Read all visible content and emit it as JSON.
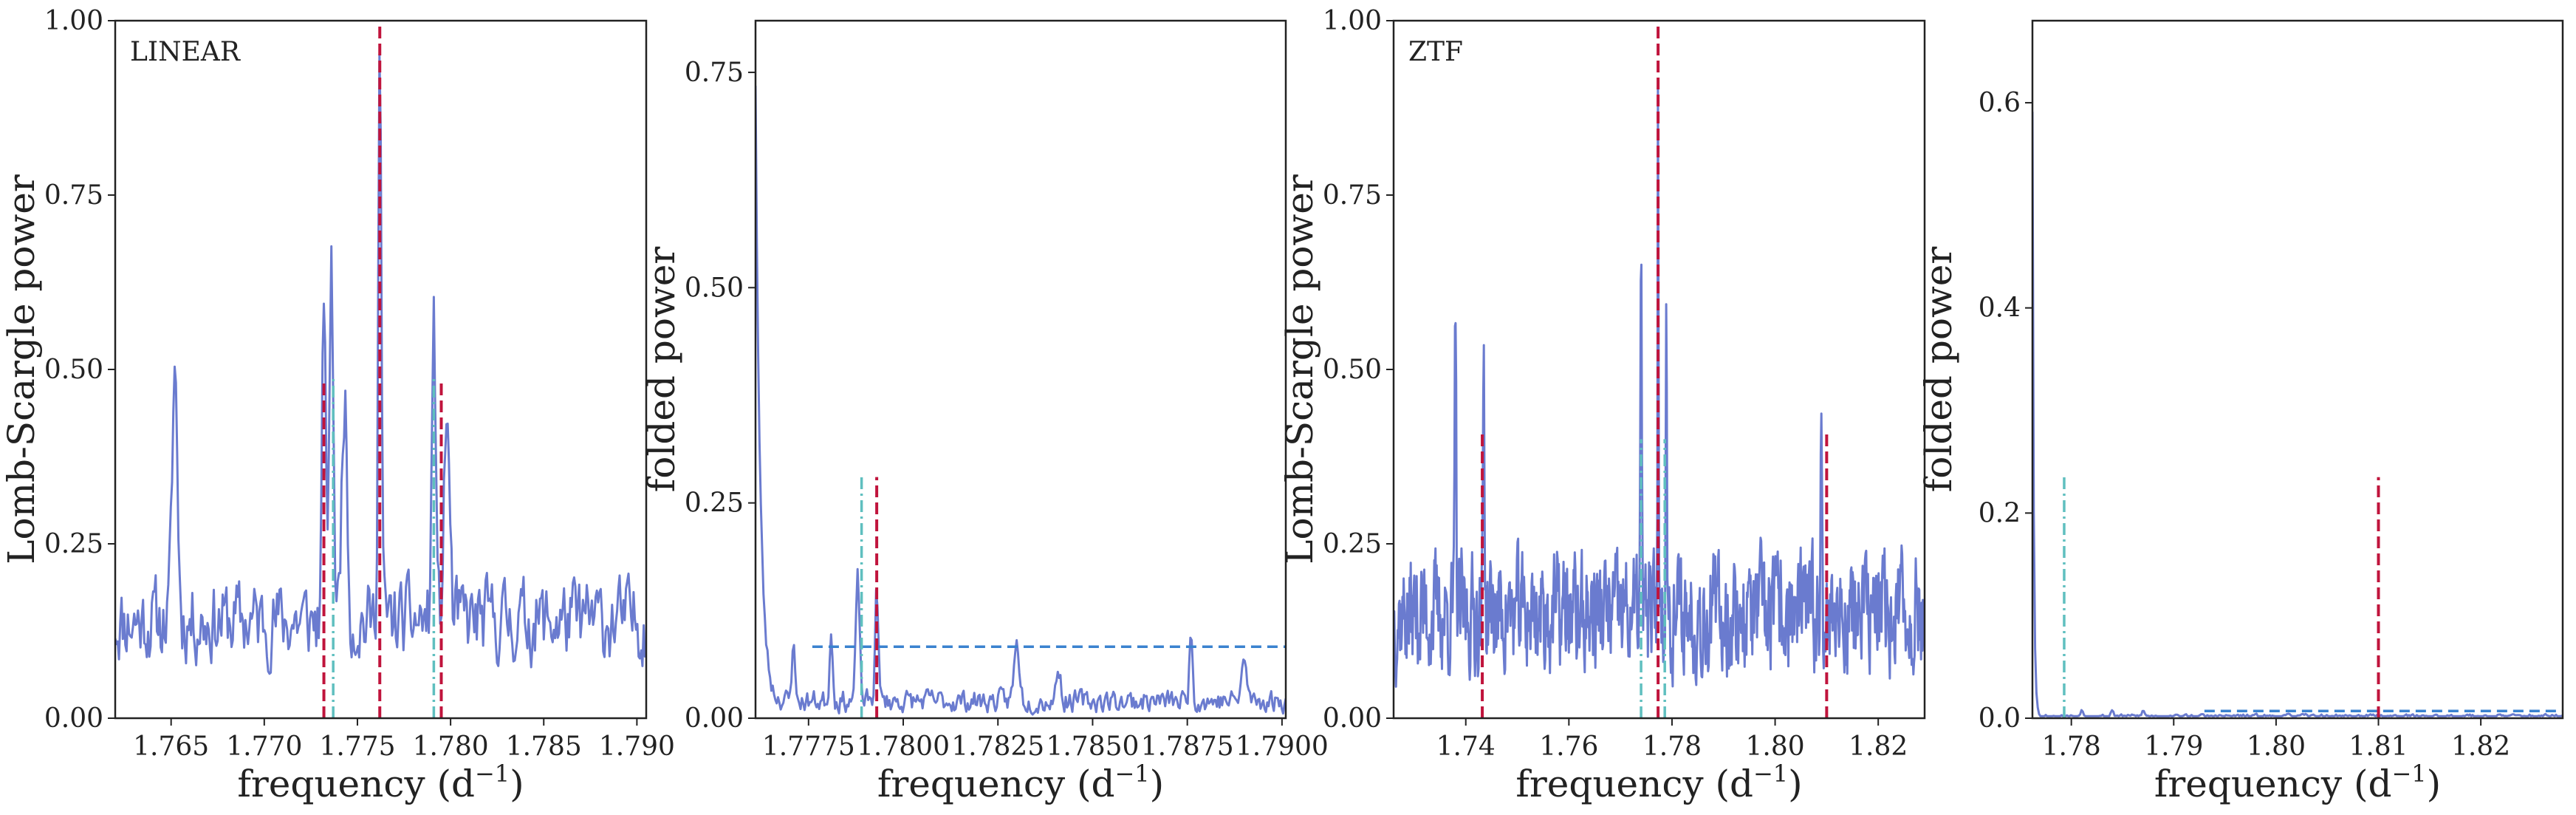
{
  "colors": {
    "series": "#6a7bcf",
    "red_marker": "#c0143c",
    "cyan_marker": "#5fbfbf",
    "threshold": "#3a82cf",
    "frame": "#222222"
  },
  "chart_data": [
    {
      "type": "line",
      "panel_label": "LINEAR",
      "xlabel": "frequency (d",
      "xlabel_sup": "−1",
      "xlabel_end": ")",
      "ylabel": "Lomb-Scargle power",
      "xlim": [
        1.762,
        1.7905
      ],
      "ylim": [
        0,
        1.0
      ],
      "xticks": [
        1.765,
        1.77,
        1.775,
        1.78,
        1.785,
        1.79
      ],
      "xtick_labels": [
        "1.765",
        "1.770",
        "1.775",
        "1.780",
        "1.785",
        "1.790"
      ],
      "yticks": [
        0,
        0.25,
        0.5,
        0.75,
        1.0
      ],
      "ytick_labels": [
        "0.00",
        "0.25",
        "0.50",
        "0.75",
        "1.00"
      ],
      "seed": 11,
      "noise_level": 0.14,
      "noise_amp": 0.09,
      "n": 420,
      "peaks": [
        [
          1.7762,
          0.83,
          0.00012
        ],
        [
          1.7736,
          0.5,
          0.00016
        ],
        [
          1.7732,
          0.47,
          0.00012
        ],
        [
          1.7791,
          0.44,
          0.00014
        ],
        [
          1.7652,
          0.36,
          0.0002
        ],
        [
          1.7743,
          0.33,
          0.0002
        ],
        [
          1.7798,
          0.3,
          0.0002
        ]
      ],
      "red_lines": [
        [
          1.7762,
          1.0
        ],
        [
          1.7732,
          0.48
        ],
        [
          1.7795,
          0.48
        ]
      ],
      "cyan_lines": [
        [
          1.7737,
          0.49
        ],
        [
          1.7791,
          0.49
        ]
      ]
    },
    {
      "type": "line",
      "panel_label": "",
      "xlabel": "frequency (d",
      "xlabel_sup": "−1",
      "xlabel_end": ")",
      "ylabel": "folded power",
      "xlim": [
        1.7761,
        1.7901
      ],
      "ylim": [
        0,
        0.81
      ],
      "xticks": [
        1.7775,
        1.78,
        1.7825,
        1.785,
        1.7875,
        1.79
      ],
      "xtick_labels": [
        "1.7775",
        "1.7800",
        "1.7825",
        "1.7850",
        "1.7875",
        "1.7900"
      ],
      "yticks": [
        0,
        0.25,
        0.5,
        0.75
      ],
      "ytick_labels": [
        "0.00",
        "0.25",
        "0.50",
        "0.75"
      ],
      "seed": 23,
      "noise_level": 0.02,
      "noise_amp": 0.02,
      "n": 400,
      "decay": [
        0.72,
        0.00012
      ],
      "peaks": [
        [
          1.7788,
          0.14,
          7e-05
        ],
        [
          1.7793,
          0.13,
          6e-05
        ],
        [
          1.7781,
          0.08,
          6e-05
        ],
        [
          1.783,
          0.065,
          0.0001
        ],
        [
          1.7876,
          0.085,
          6e-05
        ],
        [
          1.7841,
          0.04,
          8e-05
        ],
        [
          1.789,
          0.045,
          0.0001
        ],
        [
          1.7771,
          0.08,
          5e-05
        ]
      ],
      "red_lines": [
        [
          1.7793,
          0.28
        ]
      ],
      "cyan_lines": [
        [
          1.7789,
          0.28
        ]
      ],
      "threshold": [
        1.7776,
        1.7901,
        0.083
      ]
    },
    {
      "type": "line",
      "panel_label": "ZTF",
      "xlabel": "frequency (d",
      "xlabel_sup": "−1",
      "xlabel_end": ")",
      "ylabel": "Lomb-Scargle power",
      "xlim": [
        1.726,
        1.829
      ],
      "ylim": [
        0,
        1.0
      ],
      "xticks": [
        1.74,
        1.76,
        1.78,
        1.8,
        1.82
      ],
      "xtick_labels": [
        "1.74",
        "1.76",
        "1.78",
        "1.80",
        "1.82"
      ],
      "yticks": [
        0,
        0.25,
        0.5,
        0.75,
        1.0
      ],
      "ytick_labels": [
        "0.00",
        "0.25",
        "0.50",
        "0.75",
        "1.00"
      ],
      "seed": 37,
      "noise_level": 0.15,
      "noise_amp": 0.13,
      "n": 900,
      "peaks": [
        [
          1.7773,
          0.82,
          0.00012
        ],
        [
          1.774,
          0.5,
          0.00018
        ],
        [
          1.7789,
          0.4,
          0.00018
        ],
        [
          1.7435,
          0.38,
          0.0002
        ],
        [
          1.738,
          0.42,
          0.0002
        ],
        [
          1.809,
          0.34,
          0.0002
        ]
      ],
      "red_lines": [
        [
          1.7773,
          1.0
        ],
        [
          1.7432,
          0.41
        ],
        [
          1.81,
          0.41
        ]
      ],
      "cyan_lines": [
        [
          1.774,
          0.4
        ],
        [
          1.7786,
          0.4
        ]
      ]
    },
    {
      "type": "line",
      "panel_label": "",
      "xlabel": "frequency (d",
      "xlabel_sup": "−1",
      "xlabel_end": ")",
      "ylabel": "folded power",
      "xlim": [
        1.7762,
        1.828
      ],
      "ylim": [
        0,
        0.68
      ],
      "xticks": [
        1.78,
        1.79,
        1.8,
        1.81,
        1.82
      ],
      "xtick_labels": [
        "1.78",
        "1.79",
        "1.80",
        "1.81",
        "1.82"
      ],
      "yticks": [
        0,
        0.2,
        0.4,
        0.6
      ],
      "ytick_labels": [
        "0.0",
        "0.2",
        "0.4",
        "0.6"
      ],
      "seed": 53,
      "noise_level": 0.002,
      "noise_amp": 0.003,
      "n": 400,
      "decay": [
        0.59,
        0.00012
      ],
      "peaks": [
        [
          1.781,
          0.006,
          0.0002
        ],
        [
          1.784,
          0.006,
          0.0002
        ],
        [
          1.787,
          0.005,
          0.0002
        ]
      ],
      "red_lines": [
        [
          1.81,
          0.235
        ]
      ],
      "cyan_lines": [
        [
          1.7793,
          0.235
        ]
      ],
      "threshold": [
        1.793,
        1.828,
        0.007
      ]
    }
  ]
}
